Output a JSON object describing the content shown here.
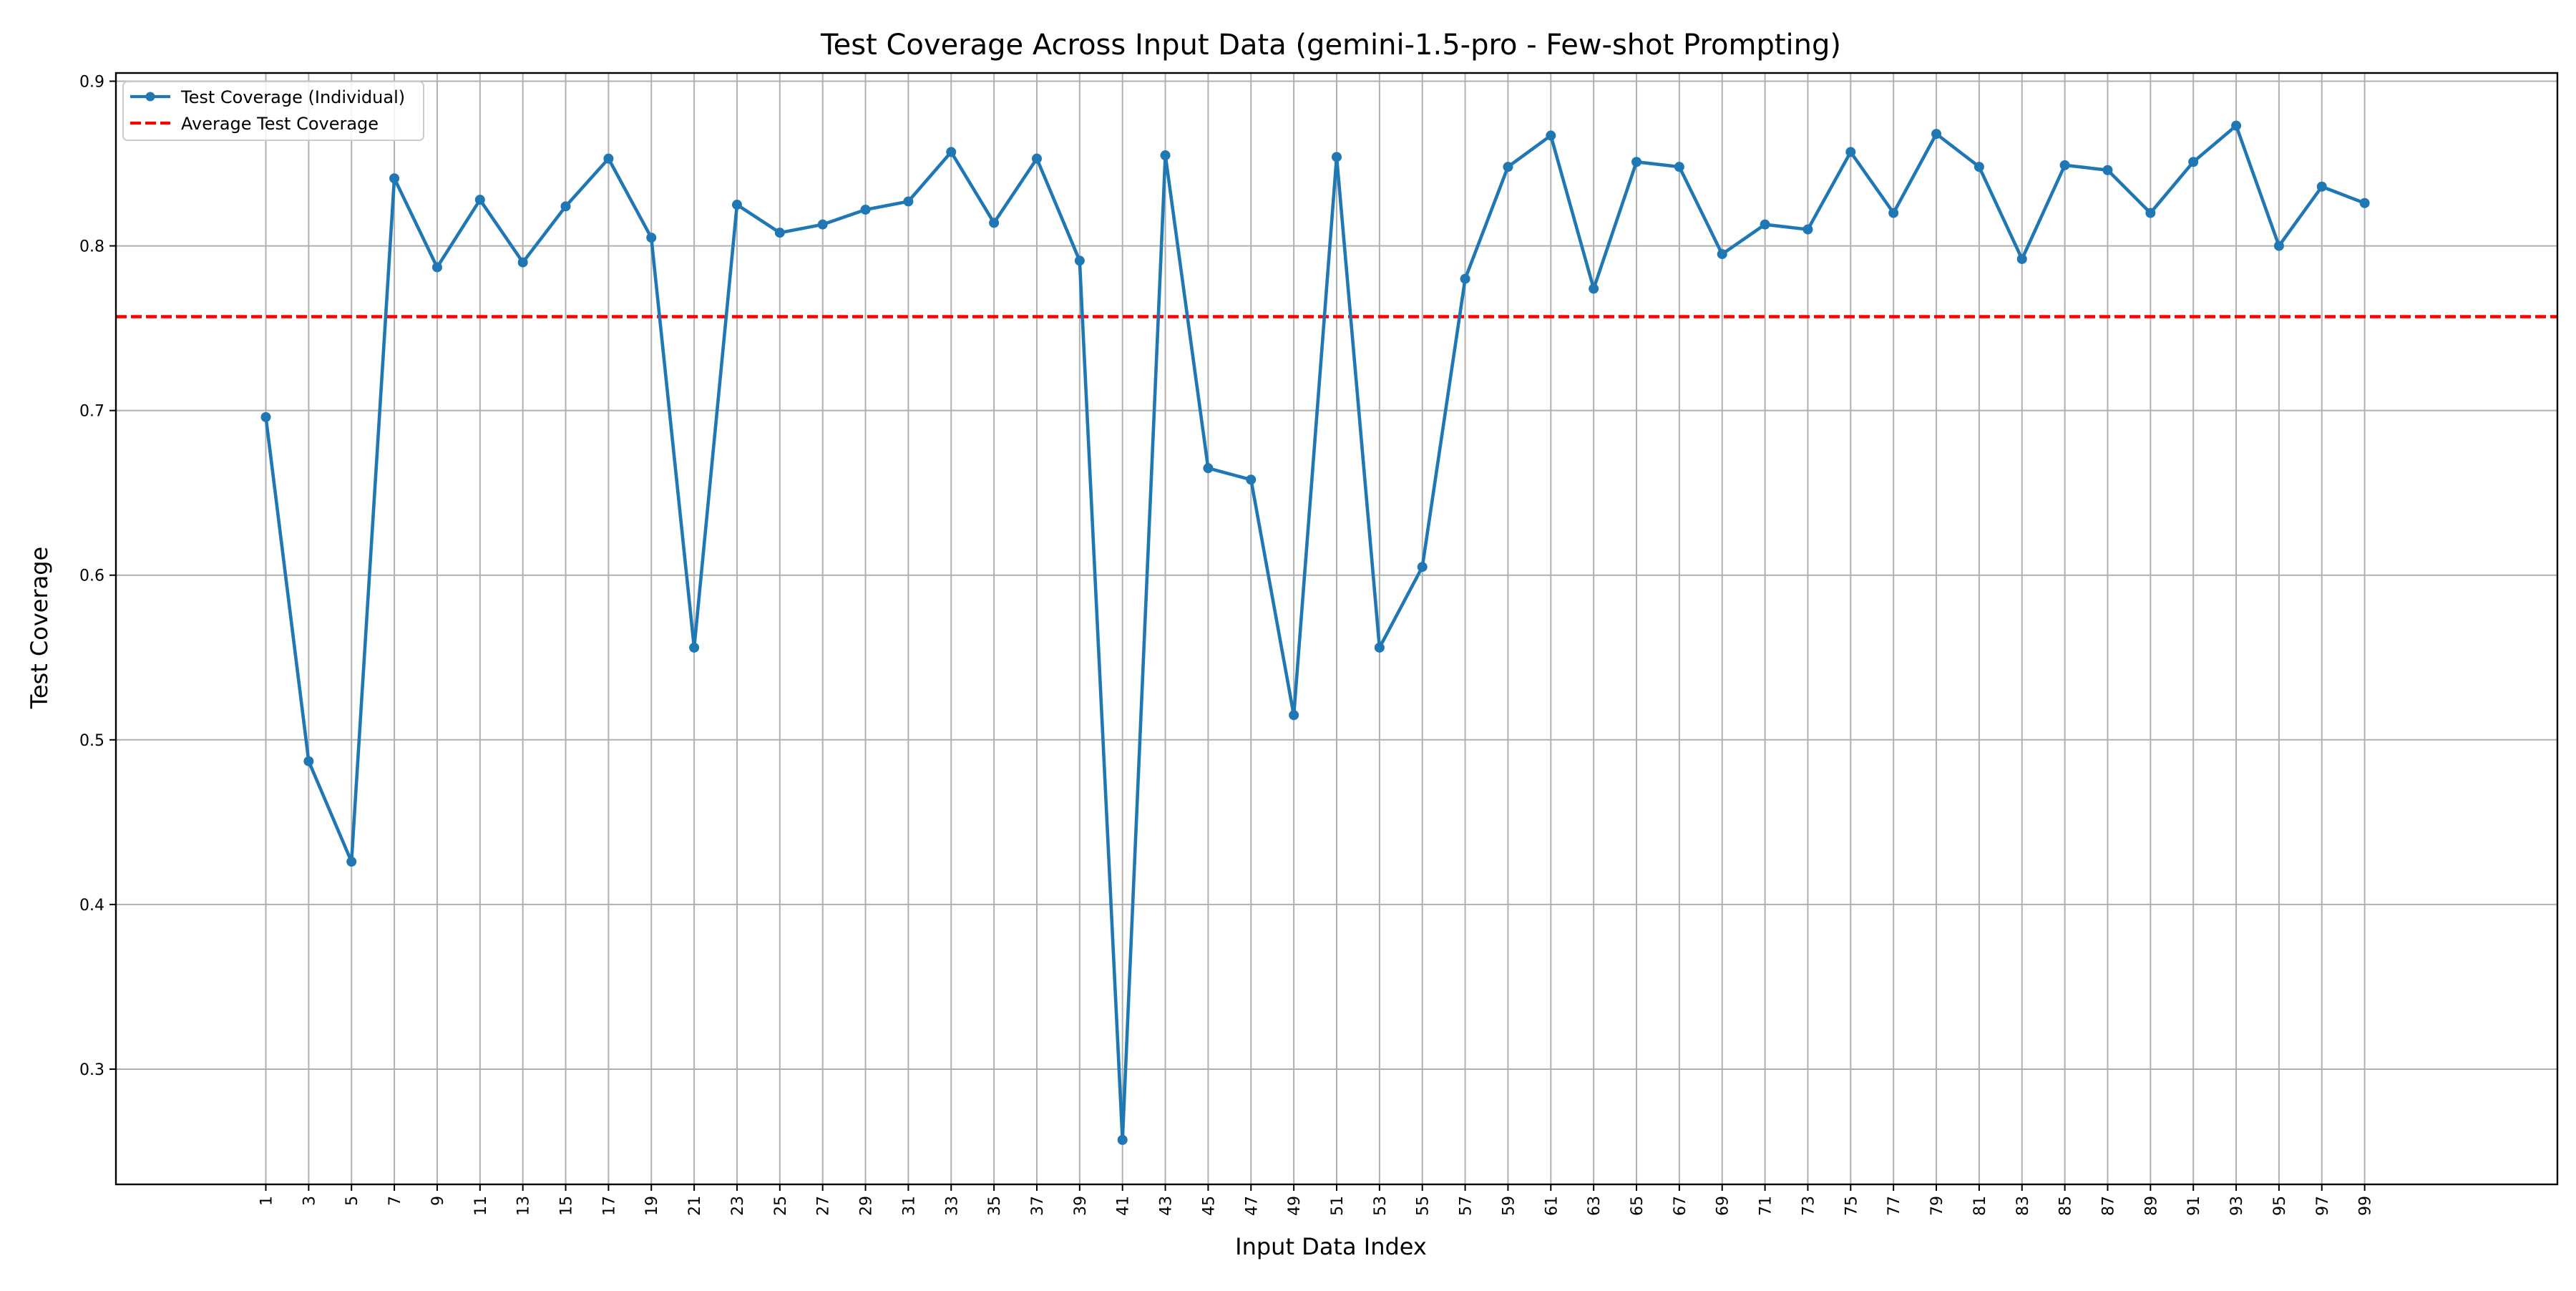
{
  "chart_data": {
    "type": "line",
    "title": "Test Coverage Across Input Data (gemini-1.5-pro - Few-shot Prompting)",
    "xlabel": "Input Data Index",
    "ylabel": "Test Coverage",
    "xlim": [
      -6,
      108
    ],
    "ylim": [
      0.23,
      0.905
    ],
    "yticks": [
      0.3,
      0.4,
      0.5,
      0.6,
      0.7,
      0.8,
      0.9
    ],
    "ytick_labels": [
      "0.3",
      "0.4",
      "0.5",
      "0.6",
      "0.7",
      "0.8",
      "0.9"
    ],
    "xticks": [
      1,
      3,
      5,
      7,
      9,
      11,
      13,
      15,
      17,
      19,
      21,
      23,
      25,
      27,
      29,
      31,
      33,
      35,
      37,
      39,
      41,
      43,
      45,
      47,
      49,
      51,
      53,
      55,
      57,
      59,
      61,
      63,
      65,
      67,
      69,
      71,
      73,
      75,
      77,
      79,
      81,
      83,
      85,
      87,
      89,
      91,
      93,
      95,
      97,
      99
    ],
    "xtick_labels": [
      "1",
      "3",
      "5",
      "7",
      "9",
      "11",
      "13",
      "15",
      "17",
      "19",
      "21",
      "23",
      "25",
      "27",
      "29",
      "31",
      "33",
      "35",
      "37",
      "39",
      "41",
      "43",
      "45",
      "47",
      "49",
      "51",
      "53",
      "55",
      "57",
      "59",
      "61",
      "63",
      "65",
      "67",
      "69",
      "71",
      "73",
      "75",
      "77",
      "79",
      "81",
      "83",
      "85",
      "87",
      "89",
      "91",
      "93",
      "95",
      "97",
      "99"
    ],
    "grid": true,
    "legend_position": "top-left",
    "series": [
      {
        "name": "Test Coverage (Individual)",
        "color": "#1f77b4",
        "style": "solid-with-markers",
        "x": [
          1,
          3,
          5,
          7,
          9,
          11,
          13,
          15,
          17,
          19,
          21,
          23,
          25,
          27,
          29,
          31,
          33,
          35,
          37,
          39,
          41,
          43,
          45,
          47,
          49,
          51,
          53,
          55,
          57,
          59,
          61,
          63,
          65,
          67,
          69,
          71,
          73,
          75,
          77,
          79,
          81,
          83,
          85,
          87,
          89,
          91,
          93,
          95,
          97,
          99
        ],
        "values": [
          0.696,
          0.487,
          0.426,
          0.841,
          0.787,
          0.828,
          0.79,
          0.824,
          0.853,
          0.805,
          0.556,
          0.825,
          0.808,
          0.813,
          0.822,
          0.827,
          0.857,
          0.814,
          0.853,
          0.791,
          0.257,
          0.855,
          0.665,
          0.658,
          0.515,
          0.854,
          0.556,
          0.605,
          0.78,
          0.848,
          0.867,
          0.774,
          0.851,
          0.848,
          0.795,
          0.813,
          0.81,
          0.857,
          0.82,
          0.868,
          0.848,
          0.792,
          0.849,
          0.846,
          0.82,
          0.851,
          0.873,
          0.8,
          0.836,
          0.826
        ]
      },
      {
        "name": "Average Test Coverage",
        "color": "#ff0000",
        "style": "dashed",
        "value": 0.757
      }
    ]
  }
}
